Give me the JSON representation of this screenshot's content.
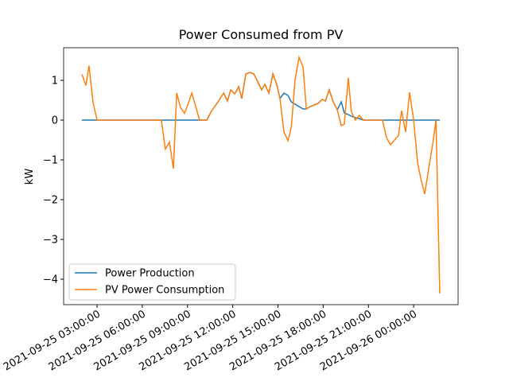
{
  "chart_data": {
    "type": "line",
    "title": "Power Consumed from PV",
    "ylabel": "kW",
    "x": [
      "2021-09-25 02:00:00",
      "2021-09-25 02:16:00",
      "2021-09-25 02:28:00",
      "2021-09-25 02:44:00",
      "2021-09-25 03:00:00",
      "2021-09-25 07:16:00",
      "2021-09-25 07:32:00",
      "2021-09-25 07:48:00",
      "2021-09-25 08:04:00",
      "2021-09-25 08:17:00",
      "2021-09-25 08:32:00",
      "2021-09-25 08:48:00",
      "2021-09-25 09:00:00",
      "2021-09-25 09:17:00",
      "2021-09-25 09:32:00",
      "2021-09-25 09:48:00",
      "2021-09-25 10:17:00",
      "2021-09-25 10:33:00",
      "2021-09-25 10:48:00",
      "2021-09-25 11:04:00",
      "2021-09-25 11:24:00",
      "2021-09-25 11:39:00",
      "2021-09-25 11:52:00",
      "2021-09-25 12:08:00",
      "2021-09-25 12:24:00",
      "2021-09-25 12:36:00",
      "2021-09-25 12:52:00",
      "2021-09-25 13:08:00",
      "2021-09-25 13:24:00",
      "2021-09-25 13:40:00",
      "2021-09-25 13:55:00",
      "2021-09-25 14:08:00",
      "2021-09-25 14:24:00",
      "2021-09-25 14:40:00",
      "2021-09-25 14:56:00",
      "2021-09-25 15:08:00",
      "2021-09-25 15:24:00",
      "2021-09-25 15:40:00",
      "2021-09-25 15:53:00",
      "2021-09-25 16:08:00",
      "2021-09-25 16:24:00",
      "2021-09-25 16:40:00",
      "2021-09-25 16:53:00",
      "2021-09-25 17:08:00",
      "2021-09-25 17:24:00",
      "2021-09-25 17:40:00",
      "2021-09-25 17:56:00",
      "2021-09-25 18:09:00",
      "2021-09-25 18:24:00",
      "2021-09-25 18:40:00",
      "2021-09-25 18:56:00",
      "2021-09-25 19:12:00",
      "2021-09-25 19:24:00",
      "2021-09-25 19:40:00",
      "2021-09-25 19:52:00",
      "2021-09-25 20:08:00",
      "2021-09-25 20:24:00",
      "2021-09-25 20:40:00",
      "2021-09-25 21:56:00",
      "2021-09-25 22:12:00",
      "2021-09-25 22:28:00",
      "2021-09-25 22:44:00",
      "2021-09-25 23:00:00",
      "2021-09-25 23:12:00",
      "2021-09-25 23:28:00",
      "2021-09-25 23:44:00",
      "2021-09-26 00:00:00",
      "2021-09-26 00:16:00",
      "2021-09-26 00:29:00",
      "2021-09-26 00:44:00",
      "2021-09-26 01:00:00",
      "2021-09-26 01:16:00",
      "2021-09-26 01:29:00",
      "2021-09-26 01:44:00"
    ],
    "series": [
      {
        "name": "Power Production",
        "color": "#1f77b4",
        "values": [
          0,
          0,
          0,
          0,
          0,
          0,
          0,
          0,
          0,
          0,
          0,
          0,
          0,
          0,
          0,
          0,
          0,
          0.2,
          0.34,
          0.48,
          0.68,
          0.48,
          0.76,
          0.66,
          0.84,
          0.54,
          1.16,
          1.2,
          1.16,
          0.96,
          0.76,
          0.9,
          0.68,
          1.16,
          0.88,
          0.54,
          0.68,
          0.62,
          0.46,
          0.4,
          0.34,
          0.28,
          0.28,
          0.34,
          0.38,
          0.42,
          0.52,
          0.48,
          0.76,
          0.46,
          0.26,
          0.46,
          0.18,
          0.14,
          0.1,
          0.06,
          0.04,
          0,
          0,
          0,
          0,
          0,
          0,
          0,
          0,
          0,
          0,
          0,
          0,
          0,
          0,
          0,
          0,
          0
        ]
      },
      {
        "name": "PV Power Consumption",
        "color": "#ff7f0e",
        "values": [
          1.15,
          0.87,
          1.37,
          0.45,
          0,
          0,
          -0.73,
          -0.55,
          -1.22,
          0.68,
          0.32,
          0.17,
          0.36,
          0.68,
          0.36,
          0,
          0,
          0.2,
          0.34,
          0.48,
          0.68,
          0.48,
          0.76,
          0.66,
          0.84,
          0.54,
          1.16,
          1.2,
          1.16,
          0.96,
          0.76,
          0.9,
          0.68,
          1.16,
          0.88,
          0.54,
          -0.3,
          -0.52,
          -0.18,
          1.0,
          1.58,
          1.34,
          0.28,
          0.34,
          0.38,
          0.42,
          0.52,
          0.48,
          0.76,
          0.46,
          0.26,
          -0.14,
          -0.1,
          1.06,
          0.22,
          0,
          0.12,
          0,
          0,
          -0.44,
          -0.62,
          -0.5,
          -0.38,
          0.24,
          -0.3,
          0.7,
          0,
          -1.08,
          -1.48,
          -1.86,
          -1.22,
          -0.6,
          0,
          -4.36
        ]
      }
    ],
    "xlim": [
      "2021-09-25 00:47:00",
      "2021-09-26 02:57:00"
    ],
    "xticks": [
      "2021-09-25 03:00:00",
      "2021-09-25 06:00:00",
      "2021-09-25 09:00:00",
      "2021-09-25 12:00:00",
      "2021-09-25 15:00:00",
      "2021-09-25 18:00:00",
      "2021-09-25 21:00:00",
      "2021-09-26 00:00:00"
    ],
    "ylim": [
      -4.64,
      1.82
    ],
    "yticks": [
      {
        "value": -4,
        "label": "−4"
      },
      {
        "value": -3,
        "label": "−3"
      },
      {
        "value": -2,
        "label": "−2"
      },
      {
        "value": -1,
        "label": "−1"
      },
      0,
      1
    ],
    "legend": "lower left"
  }
}
